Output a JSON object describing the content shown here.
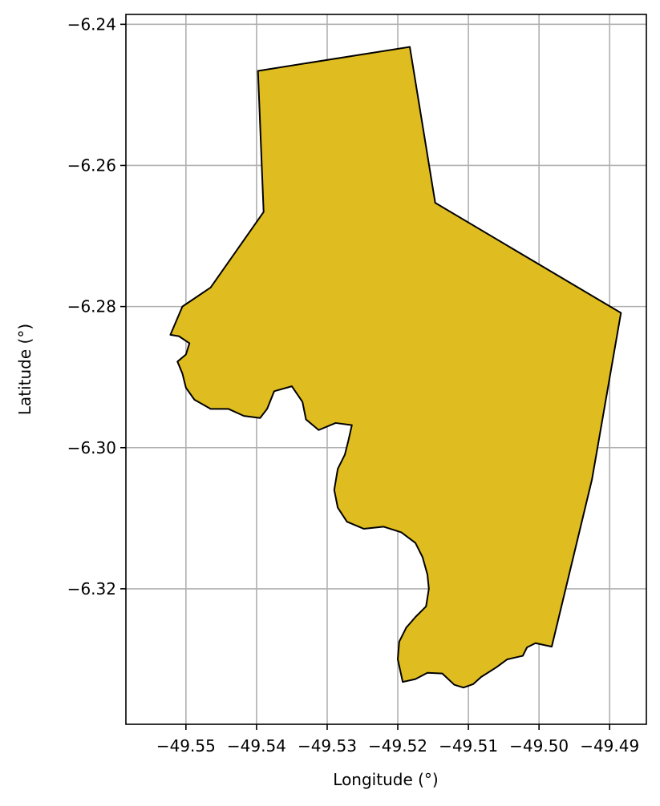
{
  "chart_data": {
    "type": "map",
    "title": "",
    "xlabel": "Longitude (°)",
    "ylabel": "Latitude (°)",
    "xlim": [
      -49.5585,
      -49.4848
    ],
    "ylim": [
      -6.3392,
      -6.2386
    ],
    "grid": true,
    "x_ticks": [
      -49.55,
      -49.54,
      -49.53,
      -49.52,
      -49.51,
      -49.5,
      -49.49
    ],
    "x_tick_labels": [
      "−49.55",
      "−49.54",
      "−49.53",
      "−49.52",
      "−49.51",
      "−49.50",
      "−49.49"
    ],
    "y_ticks": [
      -6.24,
      -6.26,
      -6.28,
      -6.3,
      -6.32
    ],
    "y_tick_labels": [
      "−6.24",
      "−6.26",
      "−6.28",
      "−6.30",
      "−6.32"
    ],
    "region": {
      "fill": "#DFBC20",
      "edge": "#000000",
      "boundary": [
        [
          -49.5398,
          -6.2466
        ],
        [
          -49.5183,
          -6.2432
        ],
        [
          -49.5147,
          -6.2653
        ],
        [
          -49.4884,
          -6.2809
        ],
        [
          -49.4925,
          -6.3045
        ],
        [
          -49.4982,
          -6.3282
        ],
        [
          -49.5005,
          -6.3277
        ],
        [
          -49.5017,
          -6.3283
        ],
        [
          -49.5023,
          -6.3295
        ],
        [
          -49.5045,
          -6.33
        ],
        [
          -49.506,
          -6.3311
        ],
        [
          -49.5082,
          -6.3325
        ],
        [
          -49.5093,
          -6.3335
        ],
        [
          -49.5107,
          -6.334
        ],
        [
          -49.512,
          -6.3336
        ],
        [
          -49.5137,
          -6.332
        ],
        [
          -49.5158,
          -6.3319
        ],
        [
          -49.5175,
          -6.3328
        ],
        [
          -49.5193,
          -6.3332
        ],
        [
          -49.52,
          -6.33
        ],
        [
          -49.5198,
          -6.3275
        ],
        [
          -49.5188,
          -6.3255
        ],
        [
          -49.5175,
          -6.324
        ],
        [
          -49.516,
          -6.3225
        ],
        [
          -49.5156,
          -6.32
        ],
        [
          -49.5158,
          -6.318
        ],
        [
          -49.5165,
          -6.3155
        ],
        [
          -49.5175,
          -6.3135
        ],
        [
          -49.5195,
          -6.312
        ],
        [
          -49.522,
          -6.3112
        ],
        [
          -49.5248,
          -6.3115
        ],
        [
          -49.5272,
          -6.3105
        ],
        [
          -49.5285,
          -6.3085
        ],
        [
          -49.529,
          -6.306
        ],
        [
          -49.5285,
          -6.303
        ],
        [
          -49.5275,
          -6.301
        ],
        [
          -49.527,
          -6.299
        ],
        [
          -49.5265,
          -6.2968
        ],
        [
          -49.5288,
          -6.2965
        ],
        [
          -49.5312,
          -6.2975
        ],
        [
          -49.533,
          -6.296
        ],
        [
          -49.5335,
          -6.2935
        ],
        [
          -49.535,
          -6.2913
        ],
        [
          -49.5375,
          -6.292
        ],
        [
          -49.5385,
          -6.2945
        ],
        [
          -49.5395,
          -6.2958
        ],
        [
          -49.5418,
          -6.2955
        ],
        [
          -49.544,
          -6.2945
        ],
        [
          -49.5465,
          -6.2945
        ],
        [
          -49.5488,
          -6.2932
        ],
        [
          -49.55,
          -6.2915
        ],
        [
          -49.5505,
          -6.2895
        ],
        [
          -49.5512,
          -6.2878
        ],
        [
          -49.55,
          -6.2868
        ],
        [
          -49.5495,
          -6.2852
        ],
        [
          -49.551,
          -6.2842
        ],
        [
          -49.5522,
          -6.284
        ],
        [
          -49.5505,
          -6.28
        ],
        [
          -49.5465,
          -6.2773
        ],
        [
          -49.539,
          -6.2666
        ],
        [
          -49.5398,
          -6.2466
        ]
      ]
    }
  }
}
